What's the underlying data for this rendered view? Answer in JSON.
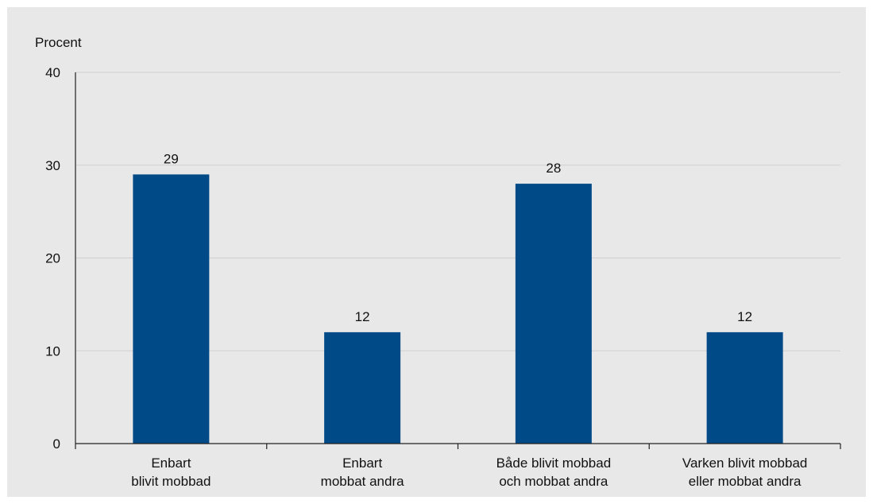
{
  "chart_data": {
    "type": "bar",
    "ylabel": "Procent",
    "ylim": [
      0,
      40
    ],
    "yticks": [
      0,
      10,
      20,
      30,
      40
    ],
    "grid": true,
    "categories": [
      [
        "Enbart",
        "blivit mobbad"
      ],
      [
        "Enbart",
        "mobbat andra"
      ],
      [
        "Både blivit mobbad",
        "och mobbat andra"
      ],
      [
        "Varken blivit mobbad",
        "eller mobbat andra"
      ]
    ],
    "values": [
      29,
      12,
      28,
      12
    ],
    "data_labels": [
      "29",
      "12",
      "28",
      "12"
    ],
    "colors": {
      "bar": "#004a87",
      "grid": "#cfcfd2",
      "axis": "#222222",
      "background": "#e8e8e9"
    }
  }
}
